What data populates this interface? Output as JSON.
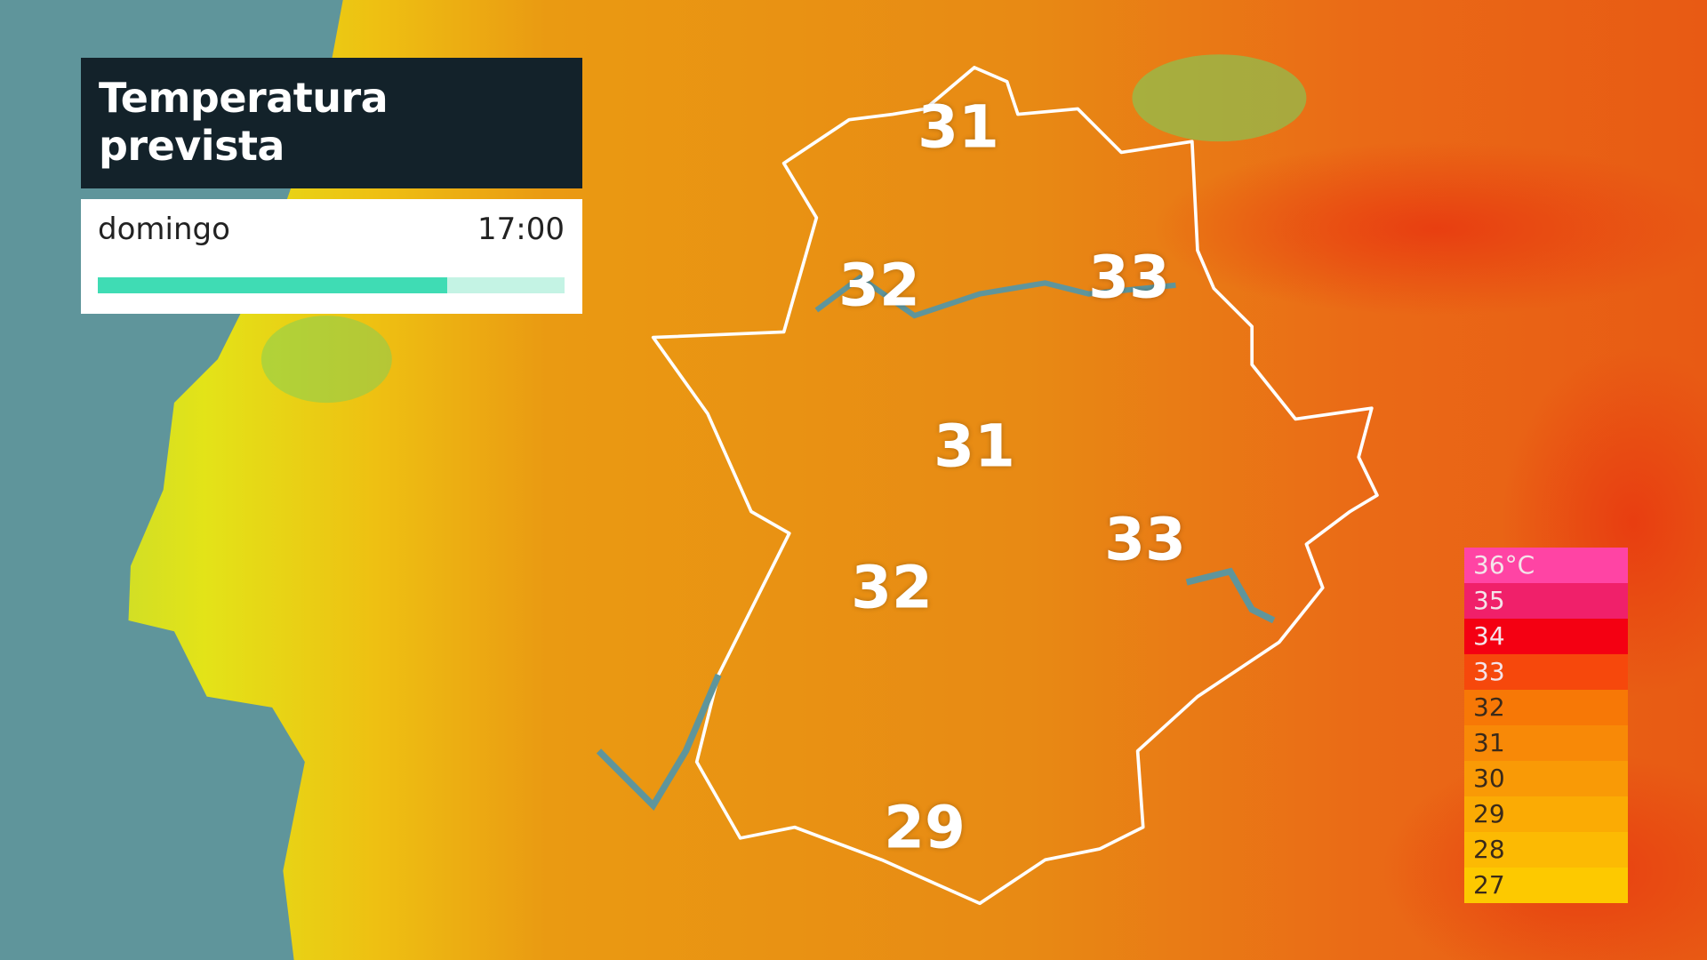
{
  "header": {
    "title": "Temperatura prevista",
    "day": "domingo",
    "time": "17:00"
  },
  "temperatures": [
    31,
    32,
    33,
    31,
    33,
    32,
    29
  ],
  "legend": {
    "labels": [
      "36°C",
      "35",
      "34",
      "33",
      "32",
      "31",
      "30",
      "29",
      "28",
      "27"
    ],
    "colors": [
      "#ff44a4",
      "#f0206a",
      "#f40012",
      "#f6480c",
      "#f77806",
      "#f88907",
      "#f99a06",
      "#fbab04",
      "#fcba03",
      "#fdc900"
    ]
  }
}
